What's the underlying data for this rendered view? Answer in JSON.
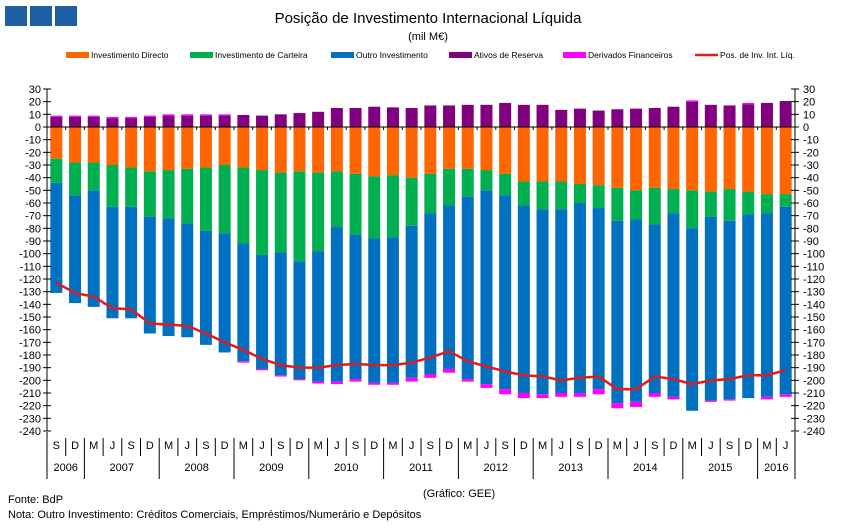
{
  "logo": {
    "color": "#1f5fa6"
  },
  "chart_data": {
    "type": "bar",
    "stacked": true,
    "title": "Posição de Investimento Internacional Líquida",
    "subtitle": "(mil M€)",
    "ylim": [
      -240,
      30
    ],
    "ytick_step": 10,
    "grid": false,
    "legend_position": "top",
    "categories": [
      "S",
      "D",
      "M",
      "J",
      "S",
      "D",
      "M",
      "J",
      "S",
      "D",
      "M",
      "J",
      "S",
      "D",
      "M",
      "J",
      "S",
      "D",
      "M",
      "J",
      "S",
      "D",
      "M",
      "J",
      "S",
      "D",
      "M",
      "J",
      "S",
      "D",
      "M",
      "J",
      "S",
      "D",
      "M",
      "J",
      "S",
      "D",
      "M",
      "J"
    ],
    "years": [
      {
        "label": "2006",
        "count": 2
      },
      {
        "label": "2007",
        "count": 4
      },
      {
        "label": "2008",
        "count": 4
      },
      {
        "label": "2009",
        "count": 4
      },
      {
        "label": "2010",
        "count": 4
      },
      {
        "label": "2011",
        "count": 4
      },
      {
        "label": "2012",
        "count": 4
      },
      {
        "label": "2013",
        "count": 4
      },
      {
        "label": "2014",
        "count": 4
      },
      {
        "label": "2015",
        "count": 4
      },
      {
        "label": "2016",
        "count": 2
      }
    ],
    "series": [
      {
        "name": "Investimento Directo",
        "color": "#ff6600",
        "values": [
          -25,
          -28,
          -28,
          -30,
          -32,
          -35,
          -34,
          -33,
          -32,
          -30,
          -32,
          -34,
          -36,
          -35,
          -36,
          -35,
          -37,
          -39,
          -38,
          -40,
          -37,
          -33,
          -33,
          -34,
          -37,
          -43,
          -43,
          -43,
          -45,
          -46,
          -48,
          -50,
          -48,
          -49,
          -50,
          -51,
          -49,
          -51,
          -53,
          -53
        ]
      },
      {
        "name": "Investimento de Carteira",
        "color": "#00b050",
        "values": [
          -19,
          -26,
          -22,
          -33,
          -31,
          -36,
          -38,
          -43,
          -50,
          -54,
          -60,
          -67,
          -63,
          -71,
          -62,
          -44,
          -48,
          -49,
          -49,
          -38,
          -31,
          -29,
          -22,
          -16,
          -17,
          -19,
          -22,
          -22,
          -15,
          -18,
          -26,
          -23,
          -29,
          -19,
          -30,
          -20,
          -25,
          -18,
          -15,
          -10
        ]
      },
      {
        "name": "Outro Investimento",
        "color": "#0070c0",
        "values": [
          -87,
          -85,
          -92,
          -88,
          -88,
          -92,
          -93,
          -90,
          -90,
          -94,
          -93,
          -90,
          -97,
          -93,
          -103,
          -122,
          -114,
          -114,
          -115,
          -120,
          -127,
          -129,
          -144,
          -153,
          -153,
          -148,
          -146,
          -145,
          -150,
          -143,
          -144,
          -144,
          -133,
          -145,
          -144,
          -145,
          -141,
          -145,
          -145,
          -148
        ]
      },
      {
        "name": "Ativos de Reserva",
        "color": "#800080",
        "values": [
          8,
          8,
          8,
          7,
          7,
          8,
          9,
          9,
          9,
          9,
          9.5,
          9,
          10,
          11,
          12,
          15,
          15,
          16,
          15.5,
          15,
          17,
          17,
          17.5,
          17.5,
          19,
          17.5,
          17.5,
          13.5,
          14.5,
          13,
          14,
          14.5,
          15,
          16,
          20,
          17.5,
          17,
          18,
          19,
          20.5
        ]
      },
      {
        "name": "Derivados Financeiros",
        "color": "#ff00ff",
        "values": [
          1,
          1,
          1,
          1,
          1,
          1,
          1,
          1,
          1,
          1,
          -1,
          -1,
          -1,
          -1,
          -1.5,
          -2,
          -2,
          -1.5,
          -1.5,
          -3,
          -3,
          -3,
          -2,
          -3,
          -4,
          -4,
          -3,
          -3,
          -3,
          -4,
          -4,
          -4,
          -3,
          -2,
          1,
          -1,
          -1,
          1,
          -2,
          -2
        ]
      },
      {
        "name": "Pos. de Inv. Int. Líq.",
        "color": "#e31a1c",
        "type": "line",
        "values": [
          -123,
          -131,
          -134,
          -143,
          -144,
          -155,
          -156,
          -157,
          -163,
          -170,
          -176,
          -183,
          -188,
          -190,
          -190,
          -188,
          -187,
          -188,
          -188,
          -186,
          -182,
          -177,
          -185,
          -189,
          -193,
          -196,
          -197,
          -200,
          -198,
          -197,
          -207,
          -207,
          -197,
          -199,
          -203,
          -200,
          -199,
          -196,
          -196,
          -192
        ]
      }
    ],
    "credit": "(Gráfico: GEE)"
  },
  "footer": {
    "source": "Fonte: BdP",
    "note": "Nota: Outro Investimento:  Créditos Comerciais, Empréstimos/Numerário  e Depósitos"
  }
}
